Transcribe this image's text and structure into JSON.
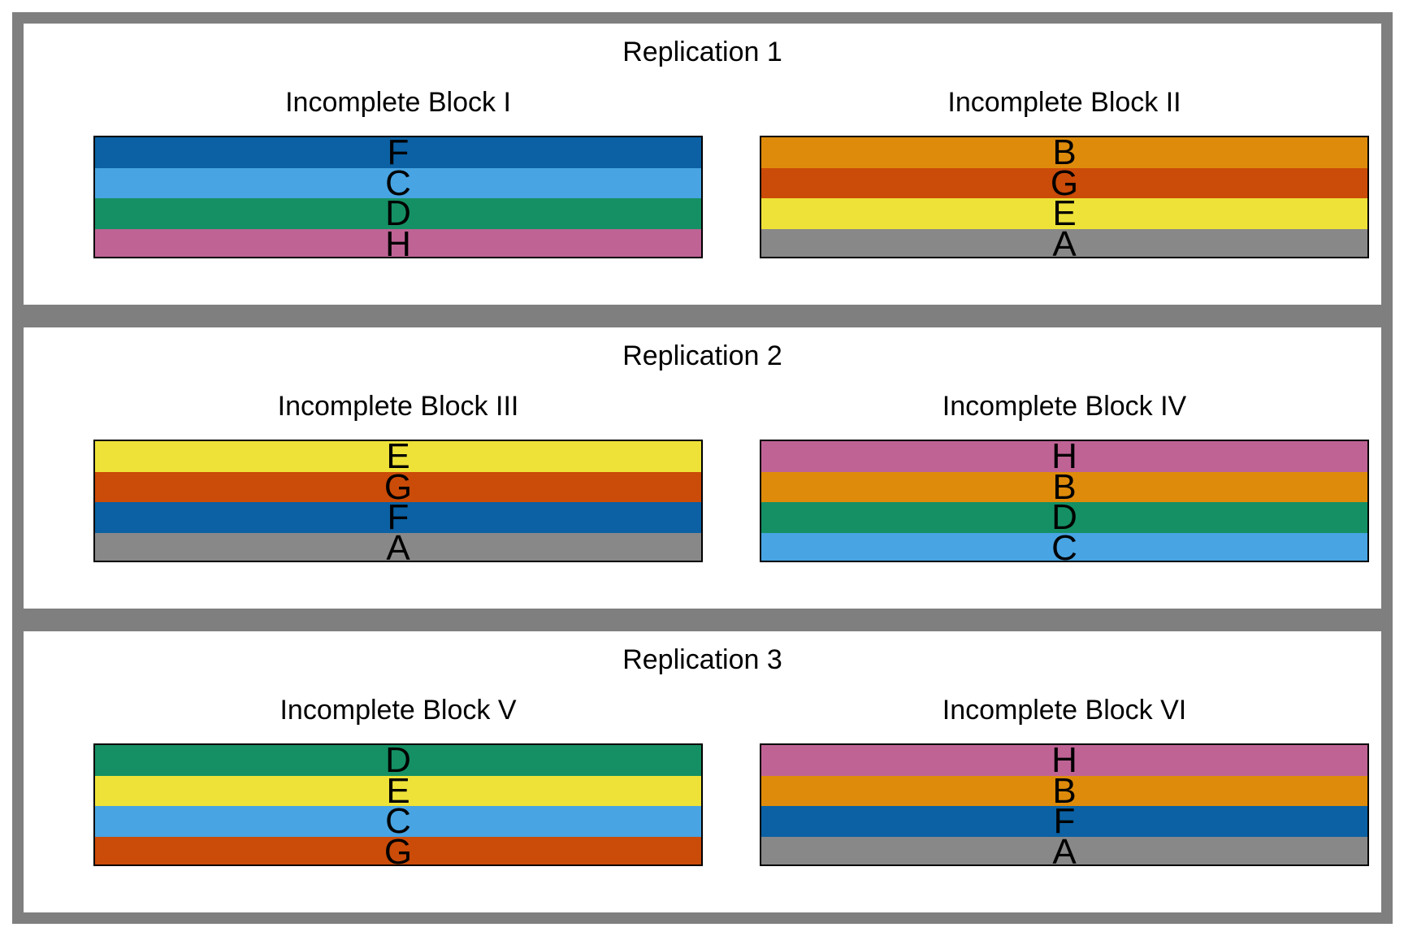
{
  "colors": {
    "frame": "#7f7f7f",
    "treatments": {
      "A": "#888888",
      "B": "#de8b0b",
      "C": "#48a4e2",
      "D": "#159064",
      "E": "#eee239",
      "F": "#0b61a3",
      "G": "#cb4b08",
      "H": "#bf6395"
    }
  },
  "replications": [
    {
      "title": "Replication 1",
      "blocks": [
        {
          "title": "Incomplete Block I",
          "plots": [
            "F",
            "C",
            "D",
            "H"
          ]
        },
        {
          "title": "Incomplete Block II",
          "plots": [
            "B",
            "G",
            "E",
            "A"
          ]
        }
      ]
    },
    {
      "title": "Replication 2",
      "blocks": [
        {
          "title": "Incomplete Block III",
          "plots": [
            "E",
            "G",
            "F",
            "A"
          ]
        },
        {
          "title": "Incomplete Block IV",
          "plots": [
            "H",
            "B",
            "D",
            "C"
          ]
        }
      ]
    },
    {
      "title": "Replication 3",
      "blocks": [
        {
          "title": "Incomplete Block V",
          "plots": [
            "D",
            "E",
            "C",
            "G"
          ]
        },
        {
          "title": "Incomplete Block VI",
          "plots": [
            "H",
            "B",
            "F",
            "A"
          ]
        }
      ]
    }
  ]
}
